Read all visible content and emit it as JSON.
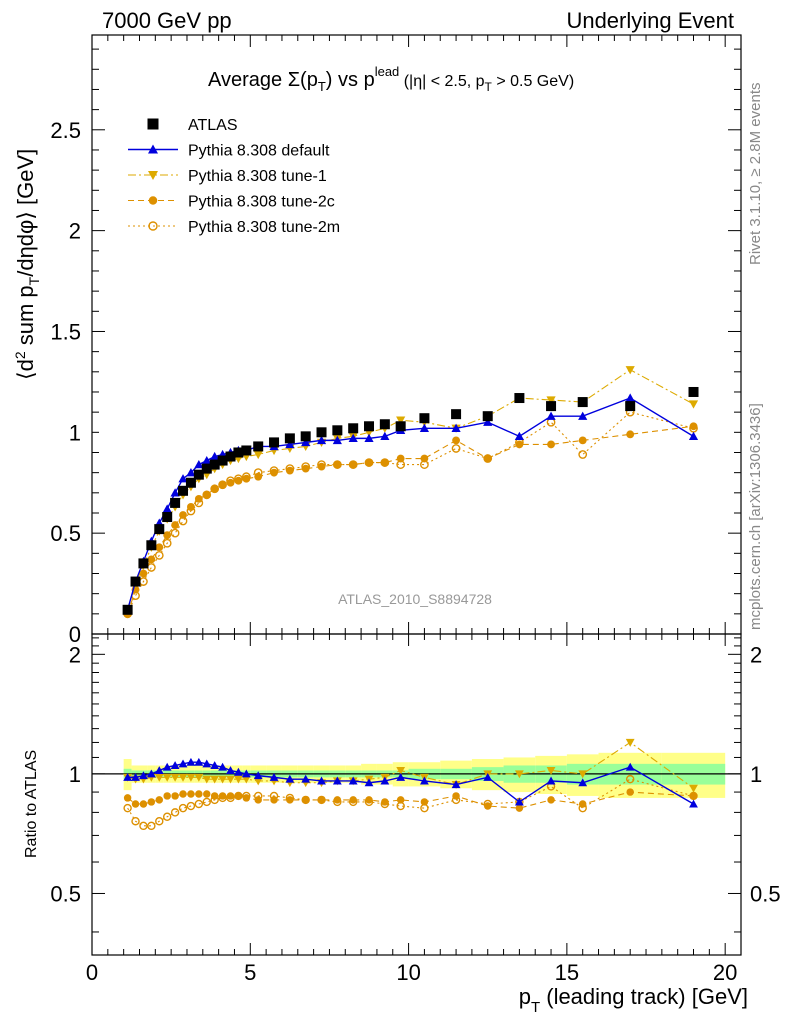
{
  "header": {
    "left": "7000 GeV pp",
    "right": "Underlying Event"
  },
  "side": {
    "rivet": "Rivet 3.1.10, ≥ 2.8M events",
    "mcplots": "mcplots.cern.ch [arXiv:1306.3436]"
  },
  "watermark": "ATLAS_2010_S8894728",
  "chart_data": [
    {
      "type": "line",
      "title": "Average Σ(pT) vs pT lead (|η| < 2.5, pT > 0.5 GeV)",
      "title_parts": {
        "lead": "Average ",
        "sigma": "Σ(p",
        "sub_T": "T",
        "close": ") vs p",
        "sup_lead": "lead",
        "tail_a": " (|η| < 2.5, p",
        "tail_b": " > 0.5 GeV)"
      },
      "ylabel": "⟨d² sum pT/dηdφ⟩ [GeV]",
      "ylabel_parts": {
        "a": "⟨d",
        "sup2": "2",
        "b": " sum p",
        "c": "/dηdφ⟩ [GeV]"
      },
      "xlim": [
        0,
        20.5
      ],
      "ylim": [
        0,
        2.97
      ],
      "y_ticks": [
        0,
        0.5,
        1,
        1.5,
        2,
        2.5
      ],
      "y_tick_labels": [
        "0",
        "0.5",
        "1",
        "1.5",
        "2",
        "2.5"
      ],
      "legend": {
        "position": "top-left"
      },
      "series": [
        {
          "name": "ATLAS",
          "color": "#000000",
          "marker": "square-filled",
          "x": [
            1.125,
            1.375,
            1.625,
            1.875,
            2.125,
            2.375,
            2.625,
            2.875,
            3.125,
            3.375,
            3.625,
            3.875,
            4.125,
            4.375,
            4.625,
            4.875,
            5.25,
            5.75,
            6.25,
            6.75,
            7.25,
            7.75,
            8.25,
            8.75,
            9.25,
            9.75,
            10.5,
            11.5,
            12.5,
            13.5,
            14.5,
            15.5,
            17.0,
            19.0
          ],
          "y": [
            0.12,
            0.26,
            0.35,
            0.44,
            0.52,
            0.58,
            0.65,
            0.71,
            0.75,
            0.79,
            0.82,
            0.84,
            0.86,
            0.88,
            0.9,
            0.91,
            0.93,
            0.95,
            0.97,
            0.98,
            1.0,
            1.01,
            1.02,
            1.03,
            1.04,
            1.03,
            1.07,
            1.09,
            1.08,
            1.17,
            1.13,
            1.15,
            1.13,
            1.2
          ]
        },
        {
          "name": "Pythia 8.308 default",
          "color": "#0000dd",
          "marker": "triangle-up-filled",
          "linestyle": "solid",
          "x": [
            1.125,
            1.375,
            1.625,
            1.875,
            2.125,
            2.375,
            2.625,
            2.875,
            3.125,
            3.375,
            3.625,
            3.875,
            4.125,
            4.375,
            4.625,
            4.875,
            5.25,
            5.75,
            6.25,
            6.75,
            7.25,
            7.75,
            8.25,
            8.75,
            9.25,
            9.75,
            10.5,
            11.5,
            12.5,
            13.5,
            14.5,
            15.5,
            17.0,
            19.0
          ],
          "y": [
            0.12,
            0.26,
            0.36,
            0.46,
            0.55,
            0.62,
            0.7,
            0.77,
            0.8,
            0.84,
            0.86,
            0.88,
            0.89,
            0.9,
            0.91,
            0.91,
            0.93,
            0.93,
            0.94,
            0.95,
            0.96,
            0.96,
            0.97,
            0.97,
            0.98,
            1.01,
            1.02,
            1.02,
            1.05,
            0.98,
            1.08,
            1.08,
            1.17,
            0.98
          ]
        },
        {
          "name": "Pythia 8.308 tune-1",
          "color": "#ddaa00",
          "marker": "triangle-down-filled",
          "linestyle": "dashdot",
          "x": [
            1.125,
            1.375,
            1.625,
            1.875,
            2.125,
            2.375,
            2.625,
            2.875,
            3.125,
            3.375,
            3.625,
            3.875,
            4.125,
            4.375,
            4.625,
            4.875,
            5.25,
            5.75,
            6.25,
            6.75,
            7.25,
            7.75,
            8.25,
            8.75,
            9.25,
            9.75,
            10.5,
            11.5,
            12.5,
            13.5,
            14.5,
            15.5,
            17.0,
            19.0
          ],
          "y": [
            0.12,
            0.25,
            0.34,
            0.43,
            0.51,
            0.57,
            0.63,
            0.69,
            0.73,
            0.77,
            0.79,
            0.82,
            0.84,
            0.86,
            0.87,
            0.88,
            0.89,
            0.91,
            0.92,
            0.93,
            0.95,
            0.97,
            0.98,
            1.0,
            1.02,
            1.06,
            1.05,
            1.02,
            1.08,
            1.17,
            1.16,
            1.15,
            1.31,
            1.14
          ]
        },
        {
          "name": "Pythia 8.308 tune-2c",
          "color": "#dd9000",
          "marker": "circle-filled",
          "linestyle": "dashed",
          "x": [
            1.125,
            1.375,
            1.625,
            1.875,
            2.125,
            2.375,
            2.625,
            2.875,
            3.125,
            3.375,
            3.625,
            3.875,
            4.125,
            4.375,
            4.625,
            4.875,
            5.25,
            5.75,
            6.25,
            6.75,
            7.25,
            7.75,
            8.25,
            8.75,
            9.25,
            9.75,
            10.5,
            11.5,
            12.5,
            13.5,
            14.5,
            15.5,
            17.0,
            19.0
          ],
          "y": [
            0.1,
            0.22,
            0.3,
            0.37,
            0.43,
            0.49,
            0.54,
            0.59,
            0.63,
            0.67,
            0.69,
            0.72,
            0.74,
            0.75,
            0.76,
            0.77,
            0.78,
            0.8,
            0.81,
            0.82,
            0.83,
            0.84,
            0.84,
            0.85,
            0.85,
            0.87,
            0.87,
            0.96,
            0.87,
            0.94,
            0.94,
            0.96,
            0.99,
            1.03
          ]
        },
        {
          "name": "Pythia 8.308 tune-2m",
          "color": "#dd9000",
          "marker": "circle-open",
          "linestyle": "dotted",
          "x": [
            1.125,
            1.375,
            1.625,
            1.875,
            2.125,
            2.375,
            2.625,
            2.875,
            3.125,
            3.375,
            3.625,
            3.875,
            4.125,
            4.375,
            4.625,
            4.875,
            5.25,
            5.75,
            6.25,
            6.75,
            7.25,
            7.75,
            8.25,
            8.75,
            9.25,
            9.75,
            10.5,
            11.5,
            12.5,
            13.5,
            14.5,
            15.5,
            17.0,
            19.0
          ],
          "y": [
            0.1,
            0.19,
            0.26,
            0.33,
            0.39,
            0.45,
            0.5,
            0.56,
            0.61,
            0.65,
            0.69,
            0.72,
            0.74,
            0.76,
            0.77,
            0.78,
            0.8,
            0.81,
            0.82,
            0.83,
            0.84,
            0.84,
            0.84,
            0.85,
            0.85,
            0.84,
            0.84,
            0.92,
            0.87,
            0.95,
            1.05,
            0.89,
            1.1,
            1.02
          ]
        }
      ]
    },
    {
      "type": "line",
      "ylabel": "Ratio to ATLAS",
      "xlabel": "pT (leading track) [GeV]",
      "xlabel_parts": {
        "a": "p",
        "sub": "T",
        "b": " (leading track) [GeV]"
      },
      "xlim": [
        0,
        20.5
      ],
      "x_ticks": [
        0,
        5,
        10,
        15,
        20
      ],
      "x_tick_labels": [
        "0",
        "5",
        "10",
        "15",
        "20"
      ],
      "ylim": [
        0.35,
        2.25
      ],
      "y_ticks": [
        0.5,
        1,
        2
      ],
      "y_tick_labels": [
        "0.5",
        "1",
        "2"
      ],
      "bands": {
        "stat_color": "#99ff99",
        "total_color": "#ffff88",
        "x": [
          1.0,
          1.25,
          1.5,
          1.75,
          2.0,
          2.25,
          2.5,
          2.75,
          3.0,
          3.25,
          3.5,
          3.75,
          4.0,
          4.25,
          4.5,
          4.75,
          5.0,
          5.5,
          6.0,
          6.5,
          7.0,
          7.5,
          8.0,
          8.5,
          9.0,
          9.5,
          10.0,
          11.0,
          12.0,
          13.0,
          14.0,
          15.0,
          16.0,
          18.0,
          20.0
        ],
        "stat_half": [
          0.03,
          0.02,
          0.02,
          0.02,
          0.02,
          0.02,
          0.02,
          0.02,
          0.02,
          0.02,
          0.02,
          0.02,
          0.02,
          0.02,
          0.02,
          0.02,
          0.02,
          0.02,
          0.02,
          0.02,
          0.02,
          0.02,
          0.02,
          0.02,
          0.02,
          0.02,
          0.03,
          0.03,
          0.04,
          0.05,
          0.05,
          0.06,
          0.06,
          0.06
        ],
        "total_half": [
          0.09,
          0.05,
          0.05,
          0.05,
          0.05,
          0.05,
          0.05,
          0.05,
          0.05,
          0.05,
          0.05,
          0.05,
          0.05,
          0.05,
          0.05,
          0.05,
          0.05,
          0.05,
          0.05,
          0.05,
          0.05,
          0.05,
          0.05,
          0.06,
          0.06,
          0.07,
          0.07,
          0.08,
          0.09,
          0.1,
          0.11,
          0.12,
          0.13,
          0.13
        ]
      },
      "series": [
        {
          "name": "Pythia 8.308 default",
          "color": "#0000dd",
          "marker": "triangle-up-filled",
          "linestyle": "solid",
          "y": [
            0.98,
            0.98,
            0.99,
            1.0,
            1.02,
            1.04,
            1.05,
            1.06,
            1.07,
            1.07,
            1.06,
            1.05,
            1.04,
            1.02,
            1.01,
            1.0,
            0.99,
            0.98,
            0.97,
            0.97,
            0.96,
            0.96,
            0.96,
            0.95,
            0.96,
            0.98,
            0.96,
            0.94,
            0.98,
            0.85,
            0.96,
            0.95,
            1.04,
            0.84
          ]
        },
        {
          "name": "Pythia 8.308 tune-1",
          "color": "#ddaa00",
          "marker": "triangle-down-filled",
          "linestyle": "dashdot",
          "y": [
            0.98,
            0.97,
            0.97,
            0.98,
            0.98,
            0.98,
            0.98,
            0.98,
            0.98,
            0.98,
            0.97,
            0.97,
            0.97,
            0.97,
            0.97,
            0.97,
            0.96,
            0.96,
            0.95,
            0.95,
            0.95,
            0.96,
            0.96,
            0.97,
            0.98,
            1.02,
            0.98,
            0.94,
            1.0,
            1.0,
            1.02,
            1.0,
            1.2,
            0.92
          ]
        },
        {
          "name": "Pythia 8.308 tune-2c",
          "color": "#dd9000",
          "marker": "circle-filled",
          "linestyle": "dashed",
          "y": [
            0.87,
            0.84,
            0.84,
            0.85,
            0.86,
            0.88,
            0.88,
            0.89,
            0.89,
            0.89,
            0.89,
            0.88,
            0.88,
            0.88,
            0.88,
            0.87,
            0.86,
            0.86,
            0.86,
            0.86,
            0.86,
            0.86,
            0.86,
            0.86,
            0.85,
            0.86,
            0.85,
            0.88,
            0.83,
            0.82,
            0.86,
            0.84,
            0.9,
            0.88
          ]
        },
        {
          "name": "Pythia 8.308 tune-2m",
          "color": "#dd9000",
          "marker": "circle-open",
          "linestyle": "dotted",
          "y": [
            0.82,
            0.76,
            0.74,
            0.74,
            0.76,
            0.78,
            0.8,
            0.82,
            0.83,
            0.84,
            0.85,
            0.86,
            0.87,
            0.87,
            0.88,
            0.88,
            0.88,
            0.88,
            0.87,
            0.86,
            0.86,
            0.85,
            0.85,
            0.85,
            0.84,
            0.83,
            0.82,
            0.86,
            0.84,
            0.85,
            0.93,
            0.82,
            0.97,
            0.88
          ]
        }
      ]
    }
  ]
}
